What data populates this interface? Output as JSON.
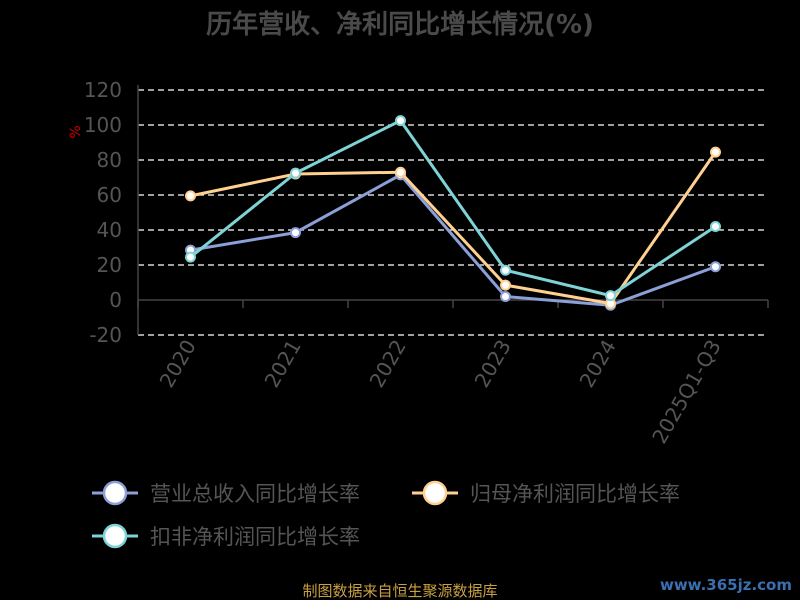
{
  "chart_data": {
    "type": "line",
    "title": "历年营收、净利同比增长情况(%)",
    "ylabel": "%",
    "categories": [
      "2020",
      "2021",
      "2022",
      "2023",
      "2024",
      "2025Q1-Q3"
    ],
    "ylim": [
      -20,
      120
    ],
    "yticks": [
      120,
      100,
      80,
      60,
      40,
      20,
      0,
      -20
    ],
    "grid": true,
    "legend_position": "bottom",
    "series": [
      {
        "name": "营业总收入同比增长率",
        "color": "#8ca0d8",
        "values": [
          28.5,
          38.5,
          71.5,
          2,
          -3,
          19
        ]
      },
      {
        "name": "归母净利润同比增长率",
        "color": "#ffd090",
        "values": [
          59.5,
          72,
          73,
          8.5,
          -2,
          84.5
        ]
      },
      {
        "name": "扣非净利润同比增长率",
        "color": "#7ed3d6",
        "values": [
          24.5,
          72.5,
          102.5,
          17,
          2.5,
          42
        ]
      }
    ]
  },
  "footer": {
    "source": "制图数据来自恒生聚源数据库",
    "watermark": "www.365jz.com"
  }
}
